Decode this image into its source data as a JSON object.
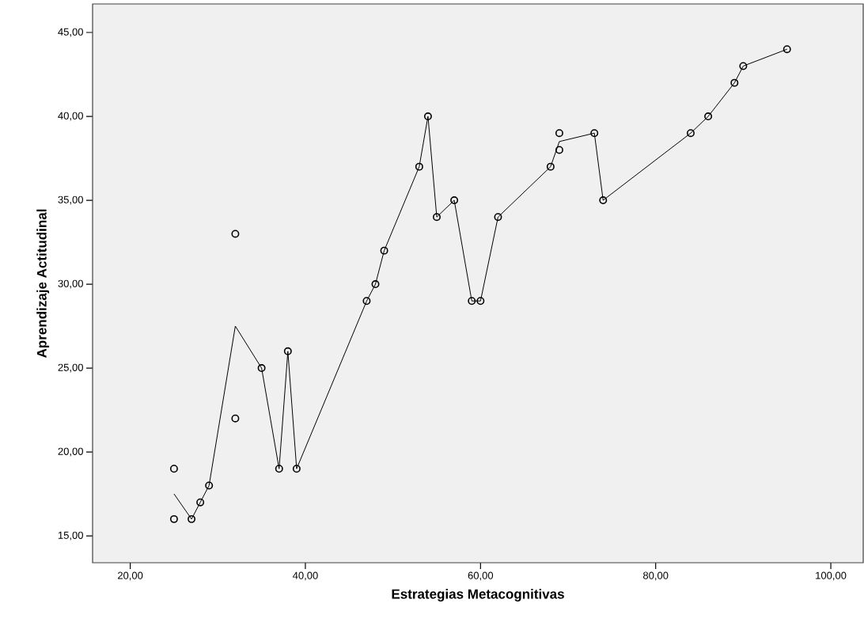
{
  "chart_data": {
    "type": "scatter",
    "xlabel": "Estrategias Metacognitivas",
    "ylabel": "Aprendizaje Actitudinal",
    "xlim": [
      15.7,
      103.7
    ],
    "ylim": [
      13.4,
      46.7
    ],
    "xticks": [
      {
        "value": 20,
        "label": "20,00"
      },
      {
        "value": 40,
        "label": "40,00"
      },
      {
        "value": 60,
        "label": "60,00"
      },
      {
        "value": 80,
        "label": "80,00"
      },
      {
        "value": 100,
        "label": "100,00"
      }
    ],
    "yticks": [
      {
        "value": 15,
        "label": "15,00"
      },
      {
        "value": 20,
        "label": "20,00"
      },
      {
        "value": 25,
        "label": "25,00"
      },
      {
        "value": 30,
        "label": "30,00"
      },
      {
        "value": 35,
        "label": "35,00"
      },
      {
        "value": 40,
        "label": "40,00"
      },
      {
        "value": 45,
        "label": "45,00"
      }
    ],
    "grid": false,
    "series": [
      {
        "marker": "circle",
        "color": "#000000",
        "x": [
          25,
          25,
          27,
          28,
          29,
          32,
          32,
          35,
          37,
          38,
          39,
          47,
          48,
          49,
          53,
          54,
          55,
          57,
          59,
          60,
          62,
          68,
          69,
          69,
          73,
          74,
          84,
          86,
          89,
          90,
          95
        ],
        "values": [
          19,
          16,
          16,
          17,
          18,
          33,
          22,
          25,
          19,
          26,
          19,
          29,
          30,
          32,
          37,
          40,
          34,
          35,
          29,
          29,
          34,
          37,
          39,
          38,
          39,
          35,
          39,
          40,
          42,
          43,
          44
        ]
      },
      {
        "type": "line",
        "marker": "none",
        "line_style": "solid",
        "color": "#000000",
        "x": [
          25,
          27,
          28,
          29,
          32,
          35,
          37,
          38,
          39,
          47,
          48,
          49,
          53,
          54,
          55,
          57,
          59,
          60,
          62,
          68,
          69,
          73,
          74,
          84,
          86,
          89,
          90,
          95
        ],
        "values": [
          17.5,
          16,
          17,
          18,
          27.5,
          25,
          19,
          26,
          19,
          29,
          30,
          32,
          37,
          40,
          34,
          35,
          29,
          29,
          34,
          37,
          38.5,
          39,
          35,
          39,
          40,
          42,
          43,
          44
        ]
      }
    ]
  }
}
